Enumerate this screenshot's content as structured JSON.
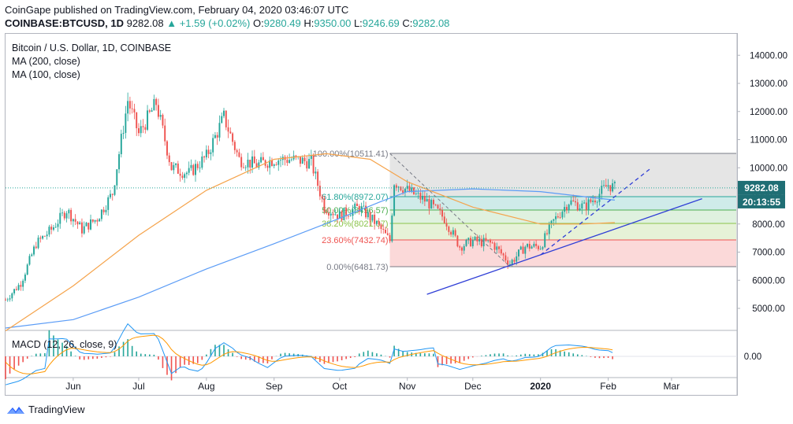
{
  "header": {
    "publisher_line": "CoinGape published on TradingView.com, February 04, 2020 03:46:07 UTC",
    "symbol": "COINBASE:BTCUSD, 1D",
    "last": "9282.08",
    "change": "+1.59 (+0.02%)",
    "O": "9280.49",
    "H": "9350.00",
    "L": "9246.69",
    "C": "9282.08"
  },
  "legend": {
    "title": "Bitcoin / U.S. Dollar, 1D, COINBASE",
    "ma200": "MA (200, close)",
    "ma100": "MA (100, close)"
  },
  "macd_label": "MACD (12, 26, close, 9)",
  "price_tag": "9282.08",
  "timer_tag": "20:13:55",
  "footer": {
    "brand": "TradingView",
    "logo_icon": "tradingview-logo-icon"
  },
  "colors": {
    "up": "#26a69a",
    "down": "#ef5350",
    "ma200": "#5b9cf6",
    "ma100": "#f5a34b",
    "trendline": "#2f3ed6",
    "price_tag_bg": "#1f6e74"
  },
  "chart_data": {
    "type": "candlestick",
    "price_axis": {
      "min": 4000,
      "max": 14000,
      "ticks": [
        5000,
        6000,
        7000,
        8000,
        9000,
        10000,
        11000,
        12000,
        13000,
        14000
      ]
    },
    "price_tick_labels": [
      "5000.00",
      "6000.00",
      "7000.00",
      "8000.00",
      "9000.00",
      "10000.00",
      "11000.00",
      "12000.00",
      "13000.00",
      "14000.00"
    ],
    "time_axis": {
      "start": "2019-05-01",
      "end": "2020-03-31",
      "ticks": [
        {
          "label": "Jun",
          "date": "2019-06-01"
        },
        {
          "label": "Jul",
          "date": "2019-07-01"
        },
        {
          "label": "Aug",
          "date": "2019-08-01"
        },
        {
          "label": "Sep",
          "date": "2019-09-01"
        },
        {
          "label": "Oct",
          "date": "2019-10-01"
        },
        {
          "label": "Nov",
          "date": "2019-11-01"
        },
        {
          "label": "Dec",
          "date": "2019-12-01"
        },
        {
          "label": "2020",
          "date": "2020-01-01",
          "bold": true
        },
        {
          "label": "Feb",
          "date": "2020-02-01"
        },
        {
          "label": "Mar",
          "date": "2020-03-01"
        }
      ]
    },
    "price_path": [
      [
        "2019-05-01",
        5300
      ],
      [
        "2019-05-08",
        5900
      ],
      [
        "2019-05-15",
        7300
      ],
      [
        "2019-05-22",
        7800
      ],
      [
        "2019-05-29",
        8500
      ],
      [
        "2019-06-05",
        7800
      ],
      [
        "2019-06-12",
        8200
      ],
      [
        "2019-06-19",
        9100
      ],
      [
        "2019-06-26",
        12400
      ],
      [
        "2019-07-01",
        11200
      ],
      [
        "2019-07-09",
        12300
      ],
      [
        "2019-07-16",
        10000
      ],
      [
        "2019-07-24",
        9800
      ],
      [
        "2019-08-01",
        10400
      ],
      [
        "2019-08-09",
        11800
      ],
      [
        "2019-08-16",
        10300
      ],
      [
        "2019-08-24",
        10100
      ],
      [
        "2019-09-01",
        10300
      ],
      [
        "2019-09-09",
        10300
      ],
      [
        "2019-09-18",
        10200
      ],
      [
        "2019-09-24",
        8600
      ],
      [
        "2019-10-01",
        8300
      ],
      [
        "2019-10-10",
        8600
      ],
      [
        "2019-10-18",
        8000
      ],
      [
        "2019-10-24",
        7400
      ],
      [
        "2019-10-26",
        9500
      ],
      [
        "2019-11-01",
        9200
      ],
      [
        "2019-11-10",
        8800
      ],
      [
        "2019-11-18",
        8200
      ],
      [
        "2019-11-25",
        7200
      ],
      [
        "2019-12-01",
        7400
      ],
      [
        "2019-12-10",
        7300
      ],
      [
        "2019-12-18",
        6600
      ],
      [
        "2019-12-25",
        7200
      ],
      [
        "2020-01-01",
        7200
      ],
      [
        "2020-01-07",
        8100
      ],
      [
        "2020-01-14",
        8800
      ],
      [
        "2020-01-21",
        8600
      ],
      [
        "2020-01-27",
        9000
      ],
      [
        "2020-02-01",
        9400
      ],
      [
        "2020-02-04",
        9282
      ]
    ],
    "ma200": [
      [
        "2019-05-01",
        4300
      ],
      [
        "2019-06-01",
        4600
      ],
      [
        "2019-07-01",
        5400
      ],
      [
        "2019-08-01",
        6400
      ],
      [
        "2019-09-01",
        7300
      ],
      [
        "2019-10-01",
        8200
      ],
      [
        "2019-10-20",
        8800
      ],
      [
        "2019-11-01",
        9150
      ],
      [
        "2019-12-01",
        9250
      ],
      [
        "2020-01-01",
        9150
      ],
      [
        "2020-02-04",
        8850
      ]
    ],
    "ma100": [
      [
        "2019-05-01",
        4200
      ],
      [
        "2019-06-01",
        5800
      ],
      [
        "2019-07-01",
        7600
      ],
      [
        "2019-08-01",
        9200
      ],
      [
        "2019-09-01",
        10300
      ],
      [
        "2019-09-25",
        10500
      ],
      [
        "2019-10-15",
        10300
      ],
      [
        "2019-11-01",
        9500
      ],
      [
        "2019-12-01",
        8600
      ],
      [
        "2020-01-01",
        8000
      ],
      [
        "2020-01-20",
        8000
      ],
      [
        "2020-02-04",
        8050
      ]
    ],
    "fibonacci": [
      {
        "label": "100.00%(10511.41)",
        "price": 10511.41
      },
      {
        "label": "61.80%(8972.07)",
        "price": 8972.07
      },
      {
        "label": "50.00%(8496.57)",
        "price": 8496.57
      },
      {
        "label": "38.20%(8021.07)",
        "price": 8021.07
      },
      {
        "label": "23.60%(7432.74)",
        "price": 7432.74
      },
      {
        "label": "0.00%(6481.73)",
        "price": 6481.73
      }
    ],
    "macd_axis_label": "0.00"
  }
}
